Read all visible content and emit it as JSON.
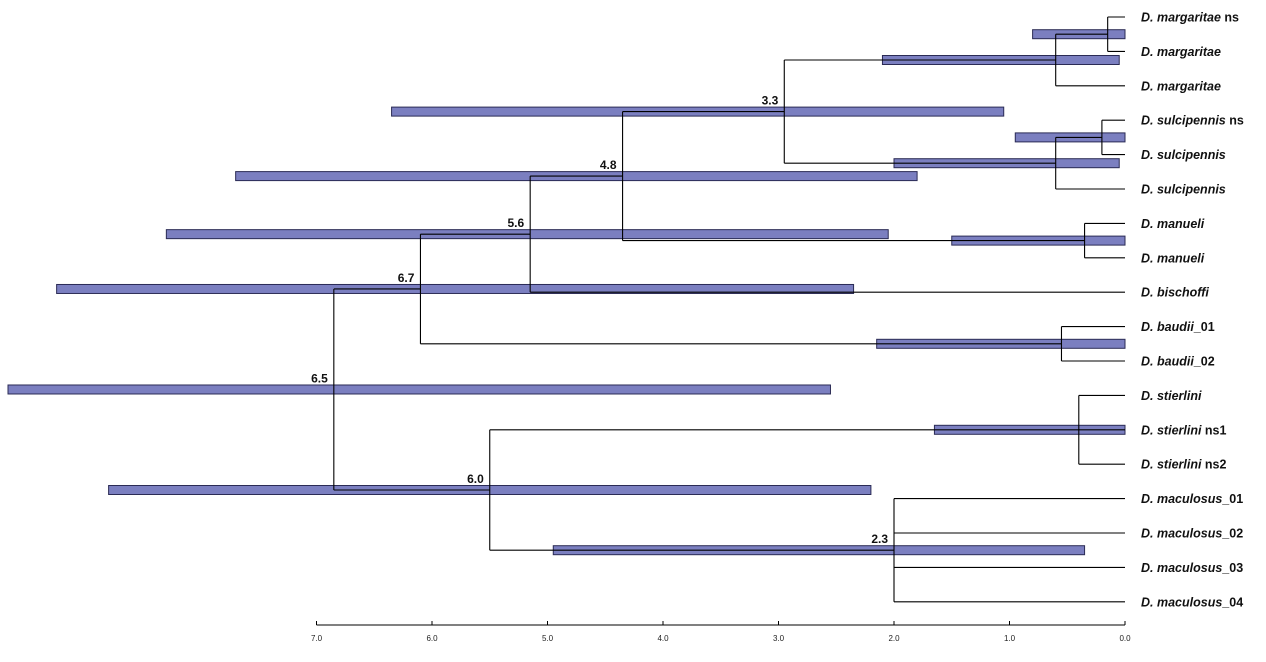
{
  "tree": {
    "tips": [
      {
        "id": "t1",
        "genus": "D. ",
        "species": "margaritae",
        "suffix": " ns"
      },
      {
        "id": "t2",
        "genus": "D. ",
        "species": "margaritae",
        "suffix": ""
      },
      {
        "id": "t3",
        "genus": "D. ",
        "species": "margaritae",
        "suffix": ""
      },
      {
        "id": "t4",
        "genus": "D. ",
        "species": "sulcipennis",
        "suffix": " ns"
      },
      {
        "id": "t5",
        "genus": "D. ",
        "species": "sulcipennis",
        "suffix": ""
      },
      {
        "id": "t6",
        "genus": "D. ",
        "species": "sulcipennis",
        "suffix": ""
      },
      {
        "id": "t7",
        "genus": "D. ",
        "species": "manueli",
        "suffix": ""
      },
      {
        "id": "t8",
        "genus": "D. ",
        "species": "manueli",
        "suffix": ""
      },
      {
        "id": "t9",
        "genus": "D. ",
        "species": "bischoffi",
        "suffix": ""
      },
      {
        "id": "t10",
        "genus": "D. ",
        "species": "baudii",
        "suffix": "_01"
      },
      {
        "id": "t11",
        "genus": "D. ",
        "species": "baudii",
        "suffix": "_02"
      },
      {
        "id": "t12",
        "genus": "D. ",
        "species": "stierlini",
        "suffix": ""
      },
      {
        "id": "t13",
        "genus": "D. ",
        "species": "stierlini",
        "suffix": " ns1"
      },
      {
        "id": "t14",
        "genus": "D. ",
        "species": "stierlini",
        "suffix": " ns2"
      },
      {
        "id": "t15",
        "genus": "D. ",
        "species": "maculosus",
        "suffix": "_01"
      },
      {
        "id": "t16",
        "genus": "D. ",
        "species": "maculosus",
        "suffix": "_02"
      },
      {
        "id": "t17",
        "genus": "D. ",
        "species": "maculosus",
        "suffix": "_03"
      },
      {
        "id": "t18",
        "genus": "D. ",
        "species": "maculosus",
        "suffix": "_04"
      }
    ],
    "nodes": [
      {
        "id": "n_m12",
        "age": 0.15,
        "children": [
          "t1",
          "t2"
        ],
        "ci": [
          0.8,
          0.0
        ]
      },
      {
        "id": "n_marg",
        "age": 0.6,
        "children": [
          "n_m12",
          "t3"
        ],
        "ci": [
          2.1,
          0.05
        ]
      },
      {
        "id": "n_s12",
        "age": 0.2,
        "children": [
          "t4",
          "t5"
        ],
        "ci": [
          0.95,
          0.0
        ]
      },
      {
        "id": "n_sulc",
        "age": 0.6,
        "children": [
          "n_s12",
          "t6"
        ],
        "ci": [
          2.0,
          0.05
        ]
      },
      {
        "id": "n_ms",
        "age": 2.95,
        "label": "3.3",
        "children": [
          "n_marg",
          "n_sulc"
        ],
        "ci": [
          6.35,
          1.05
        ]
      },
      {
        "id": "n_manu",
        "age": 0.35,
        "children": [
          "t7",
          "t8"
        ],
        "ci": [
          1.5,
          0.0
        ]
      },
      {
        "id": "n_msm",
        "age": 4.35,
        "label": "4.8",
        "children": [
          "n_ms",
          "n_manu"
        ],
        "ci": [
          7.7,
          1.8
        ]
      },
      {
        "id": "n_bisch",
        "age": 5.15,
        "label": "5.6",
        "children": [
          "n_msm",
          "t9"
        ],
        "ci": [
          8.3,
          2.05
        ]
      },
      {
        "id": "n_baud",
        "age": 0.55,
        "children": [
          "t10",
          "t11"
        ],
        "ci": [
          2.15,
          0.0
        ]
      },
      {
        "id": "n_cladeA",
        "age": 6.1,
        "label": "6.7",
        "children": [
          "n_bisch",
          "n_baud"
        ],
        "ci": [
          9.25,
          2.35
        ]
      },
      {
        "id": "n_stier",
        "age": 0.4,
        "children": [
          "t12",
          "t13",
          "t14"
        ],
        "ci": [
          1.65,
          0.0
        ]
      },
      {
        "id": "n_macu",
        "age": 2.0,
        "label": "2.3",
        "children": [
          "t15",
          "t16",
          "t17",
          "t18"
        ],
        "ci": [
          4.95,
          0.35
        ]
      },
      {
        "id": "n_cladeB",
        "age": 5.5,
        "label": "6.0",
        "children": [
          "n_stier",
          "n_macu"
        ],
        "ci": [
          8.8,
          2.2
        ]
      },
      {
        "id": "root",
        "age": 6.85,
        "label": "6.5",
        "children": [
          "n_cladeA",
          "n_cladeB"
        ],
        "ci": [
          10.2,
          2.55
        ]
      }
    ],
    "root": "root"
  },
  "axis": {
    "ticks": [
      {
        "value": 7.0,
        "label": "7.0"
      },
      {
        "value": 6.0,
        "label": "6.0"
      },
      {
        "value": 5.0,
        "label": "5.0"
      },
      {
        "value": 4.0,
        "label": "4.0"
      },
      {
        "value": 3.0,
        "label": "3.0"
      },
      {
        "value": 2.0,
        "label": "2.0"
      },
      {
        "value": 1.0,
        "label": "1.0"
      },
      {
        "value": 0.0,
        "label": "0.0"
      }
    ]
  },
  "colors": {
    "bar_fill": "#7b7fc0",
    "bar_stroke": "#2b2b55",
    "branch": "#000000"
  }
}
